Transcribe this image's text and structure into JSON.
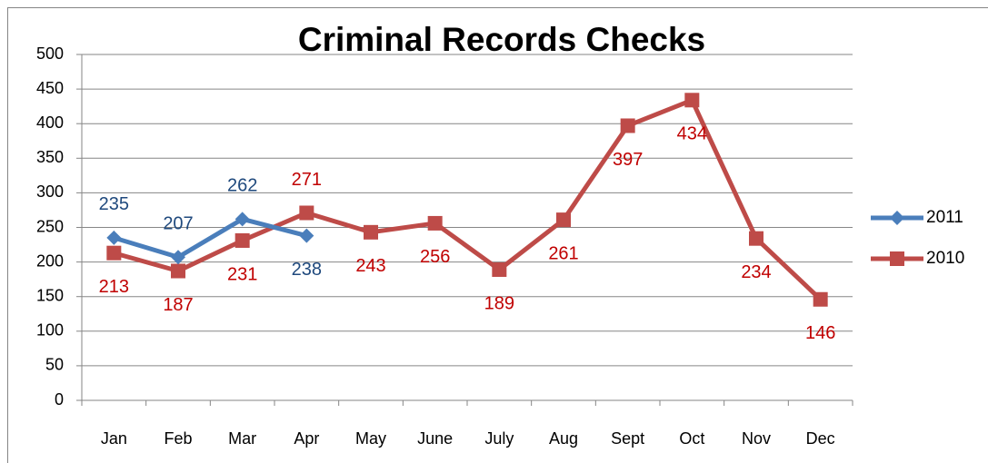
{
  "chart_data": {
    "type": "line",
    "title": "Criminal Records Checks",
    "categories": [
      "Jan",
      "Feb",
      "Mar",
      "Apr",
      "May",
      "June",
      "July",
      "Aug",
      "Sept",
      "Oct",
      "Nov",
      "Dec"
    ],
    "series": [
      {
        "name": "2011",
        "color": "#4a7ebb",
        "label_color": "#1f497d",
        "marker": "diamond",
        "values": [
          235,
          207,
          262,
          238,
          null,
          null,
          null,
          null,
          null,
          null,
          null,
          null
        ]
      },
      {
        "name": "2010",
        "color": "#be4b48",
        "label_color": "#c00000",
        "marker": "square",
        "values": [
          213,
          187,
          231,
          271,
          243,
          256,
          189,
          261,
          397,
          434,
          234,
          146
        ]
      }
    ],
    "ylim": [
      0,
      500
    ],
    "yticks": [
      0,
      50,
      100,
      150,
      200,
      250,
      300,
      350,
      400,
      450,
      500
    ],
    "grid": true,
    "legend": "right"
  }
}
